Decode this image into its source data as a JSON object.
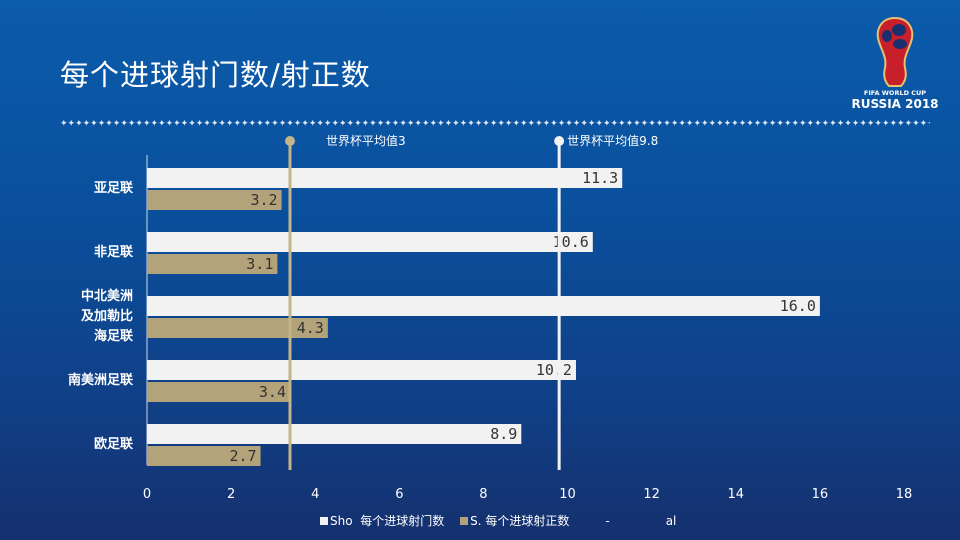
{
  "title": "每个进球射门数/射正数",
  "logo": {
    "line1": "FIFA WORLD CUP",
    "line2": "RUSSIA 2018"
  },
  "colors": {
    "shots": "#f2f2f2",
    "on_target": "#b3a37a",
    "ref_line_1": "#c4b48a",
    "ref_line_2": "#f2f2f2"
  },
  "chart_data": {
    "type": "bar",
    "orientation": "horizontal",
    "categories": [
      "亚足联",
      "非足联",
      "中北美洲\n及加勒比\n海足联",
      "南美洲足联",
      "欧足联"
    ],
    "category_lines": [
      [
        "亚足联"
      ],
      [
        "非足联"
      ],
      [
        "中北美洲",
        "及加勒比",
        "海足联"
      ],
      [
        "南美洲足联"
      ],
      [
        "欧足联"
      ]
    ],
    "series": [
      {
        "name": "每个进球射门数",
        "legend_prefix": "Sho",
        "values": [
          11.3,
          10.6,
          16.0,
          10.2,
          8.9
        ],
        "labels": [
          "11.3",
          "10.6",
          "16.0",
          "10.2",
          "8.9"
        ]
      },
      {
        "name": "每个进球射正数",
        "legend_prefix": "S.",
        "values": [
          3.2,
          3.1,
          4.3,
          3.4,
          2.7
        ],
        "labels": [
          "3.2",
          "3.1",
          "4.3",
          "3.4",
          "2.7"
        ]
      }
    ],
    "reference_lines": [
      {
        "label": "世界杯平均值3",
        "value": 3.4
      },
      {
        "label": "世界杯平均值9.8",
        "value": 9.8
      }
    ],
    "xlim": [
      0,
      18
    ],
    "xticks": [
      "0",
      "2",
      "4",
      "6",
      "8",
      "10",
      "12",
      "14",
      "16",
      "18"
    ],
    "legend_extra": [
      "-",
      "al"
    ],
    "legend": "bottom",
    "grid": false
  }
}
